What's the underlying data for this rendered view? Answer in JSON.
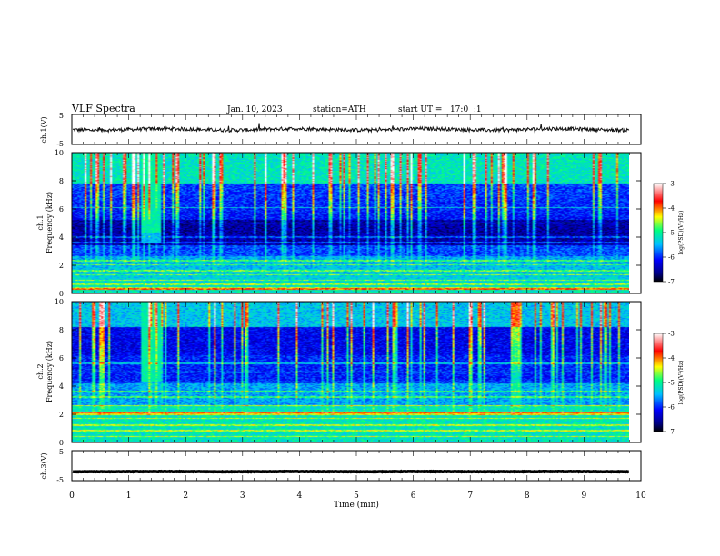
{
  "header": {
    "title": "VLF Spectra",
    "date": "Jan. 10, 2023",
    "station": "station=ATH",
    "start": "start UT =   17:0  :1"
  },
  "colors": {
    "trace": "#111111",
    "colormap": [
      "#000000",
      "#000080",
      "#0000ff",
      "#00c0ff",
      "#00ff80",
      "#ffff00",
      "#ff0000",
      "#ffffff"
    ]
  },
  "chart_data": [
    {
      "type": "line",
      "panel": "ch1-waveform",
      "ylabel": "ch.1(V)",
      "ylim": [
        -5,
        5
      ],
      "yticks": [
        "5",
        "-5"
      ],
      "xlim": [
        0,
        10
      ],
      "description_values": {
        "baseline_V": 0,
        "noise_amplitude_V": 0.6
      }
    },
    {
      "type": "heatmap",
      "panel": "ch1-spectrogram",
      "ylabel": "ch.1",
      "ylabel2": "Frequency (kHz)",
      "ylim": [
        0,
        10
      ],
      "yticks": [
        "0",
        "2",
        "4",
        "6",
        "8",
        "10"
      ],
      "xlim": [
        0,
        10
      ],
      "colorbar": {
        "label": "log(PSD)(V²/Hz)",
        "range": [
          -7,
          -3
        ],
        "ticks": [
          "-3",
          "-4",
          "-5",
          "-6",
          "-7"
        ]
      },
      "burst_time_min": [
        1.2,
        1.55
      ]
    },
    {
      "type": "heatmap",
      "panel": "ch2-spectrogram",
      "ylabel": "ch.2",
      "ylabel2": "Frequency (kHz)",
      "ylim": [
        0,
        10
      ],
      "yticks": [
        "0",
        "2",
        "4",
        "6",
        "8",
        "10"
      ],
      "xlim": [
        0,
        10
      ],
      "colorbar": {
        "label": "log(PSD)(V²/Hz)",
        "range": [
          -7,
          -3
        ],
        "ticks": [
          "-3",
          "-4",
          "-5",
          "-6",
          "-7"
        ]
      },
      "burst_time_min": [
        1.2,
        1.55
      ]
    },
    {
      "type": "line",
      "panel": "ch3-waveform",
      "ylabel": "ch.3(V)",
      "ylim": [
        -5,
        5
      ],
      "yticks": [
        "5",
        "-5"
      ],
      "xlim": [
        0,
        10
      ],
      "description_values": {
        "baseline_V": -2,
        "noise_amplitude_V": 0.15
      }
    }
  ],
  "xaxis": {
    "label": "Time (min)",
    "ticks": [
      "0",
      "1",
      "2",
      "3",
      "4",
      "5",
      "6",
      "7",
      "8",
      "9",
      "10"
    ]
  }
}
